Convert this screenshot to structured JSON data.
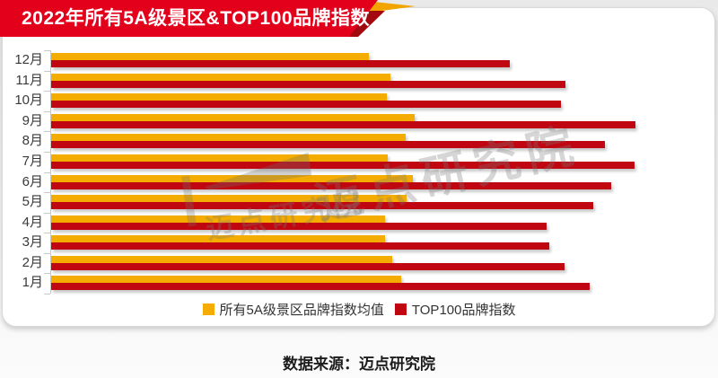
{
  "title": "2022年所有5A级景区&TOP100品牌指数",
  "footer": {
    "source_text": "数据来源：迈点研究院"
  },
  "watermark": {
    "text": "迈点研究院"
  },
  "colors": {
    "banner_red": "#e2001a",
    "banner_dark_red": "#a30a10",
    "banner_gold": "#f2a500",
    "bar_yellow": "#f5ac00",
    "bar_red": "#c00711",
    "axis_gray": "#c8c8c8",
    "label_gray": "#3a3a3a"
  },
  "legend": [
    {
      "label": "所有5A级景区品牌指数均值",
      "color": "#f5ac00"
    },
    {
      "label": "TOP100品牌指数",
      "color": "#c00711"
    }
  ],
  "chart_data": {
    "type": "bar",
    "orientation": "horizontal",
    "title": "2022年所有5A级景区&TOP100品牌指数",
    "xlabel": "",
    "ylabel": "",
    "categories": [
      "12月",
      "11月",
      "10月",
      "9月",
      "8月",
      "7月",
      "6月",
      "5月",
      "4月",
      "3月",
      "2月",
      "1月"
    ],
    "series": [
      {
        "name": "所有5A级景区品牌指数均值",
        "color": "#f5ac00",
        "values": [
          354,
          378,
          374,
          405,
          395,
          375,
          403,
          396,
          372,
          372,
          380,
          390
        ]
      },
      {
        "name": "TOP100品牌指数",
        "color": "#c00711",
        "values": [
          511,
          573,
          568,
          651,
          617,
          650,
          624,
          604,
          552,
          555,
          572,
          600
        ]
      }
    ],
    "xlim": [
      0,
      740
    ],
    "value_note": "no numeric axis shown in source; values are proportional lengths (px) of bars, axis origin at 0",
    "grid": false,
    "legend_position": "bottom",
    "value_axis_labels_visible": false
  }
}
